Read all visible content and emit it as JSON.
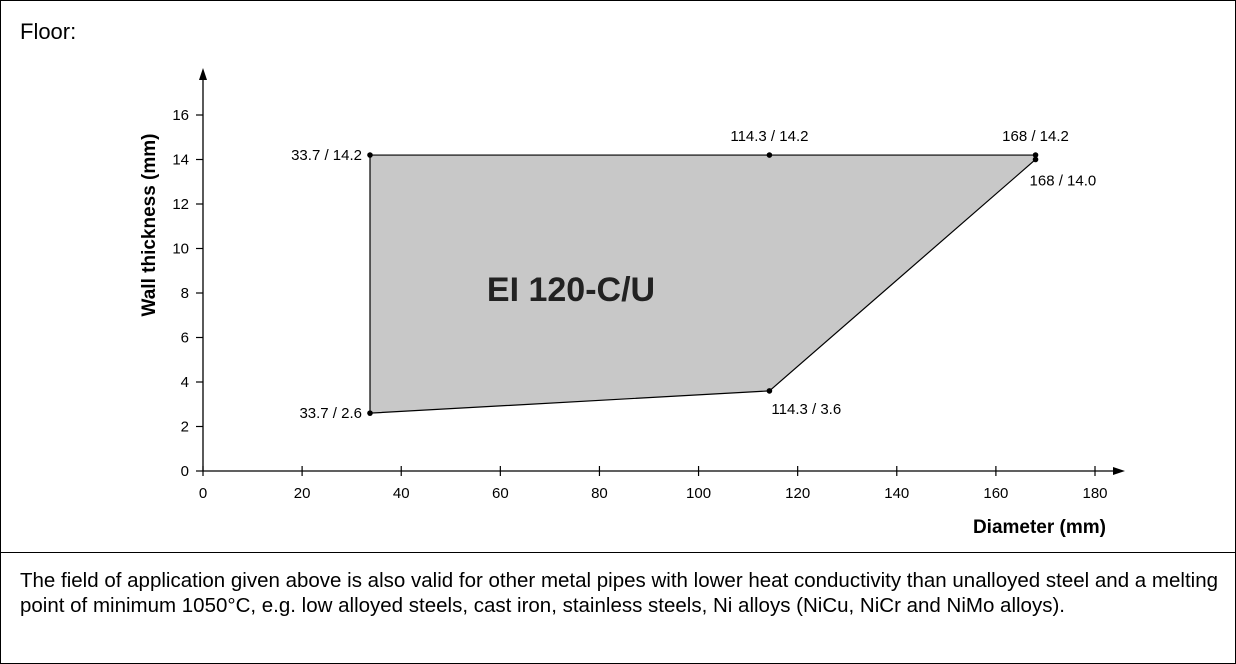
{
  "section_label": "Floor:",
  "note": "The field of application given above is also valid for other metal pipes with lower heat conductivity than unalloyed steel and a melting point of minimum 1050°C, e.g. low alloyed steels, cast iron, stainless steels, Ni alloys (NiCu, NiCr and NiMo alloys).",
  "chart_data": {
    "type": "area",
    "xlabel": "Diameter (mm)",
    "ylabel": "Wall thickness (mm)",
    "xlim": [
      0,
      180
    ],
    "ylim": [
      0,
      16
    ],
    "x_ticks": [
      0,
      20,
      40,
      60,
      80,
      100,
      120,
      140,
      160,
      180
    ],
    "y_ticks": [
      0,
      2,
      4,
      6,
      8,
      10,
      12,
      14,
      16
    ],
    "grid": false,
    "region_label": "EI 120-C/U",
    "region_color": "#c8c8c8",
    "polygon": [
      {
        "x": 33.7,
        "y": 14.2,
        "label": "33.7 / 14.2"
      },
      {
        "x": 114.3,
        "y": 14.2,
        "label": "114.3 / 14.2"
      },
      {
        "x": 168,
        "y": 14.2,
        "label": "168 / 14.2"
      },
      {
        "x": 168,
        "y": 14.0,
        "label": "168 / 14.0"
      },
      {
        "x": 114.3,
        "y": 3.6,
        "label": "114.3 / 3.6"
      },
      {
        "x": 33.7,
        "y": 2.6,
        "label": "33.7 / 2.6"
      }
    ]
  }
}
